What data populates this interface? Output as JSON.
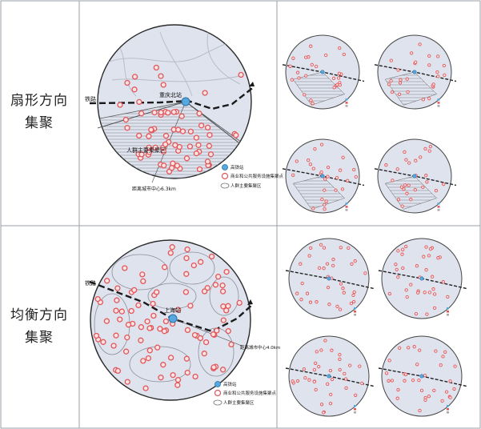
{
  "rows": [
    {
      "id": "sector",
      "label_line1": "扇形方向",
      "label_line2": "集聚",
      "railway_label": "铁路",
      "station_label": "重庆北站",
      "zone_label": "人群主要集聚区",
      "distance_label": "距离城市中心6.3km",
      "legend": [
        "高铁站",
        "商业和公共服务设施集聚点",
        "人群主要集聚区"
      ]
    },
    {
      "id": "balanced",
      "label_line1": "均衡方向",
      "label_line2": "集聚",
      "railway_label": "铁路",
      "station_label": "上海站",
      "distance_label": "距离城市中心4.0km",
      "legend": [
        "高铁站",
        "商业和公共服务设施集聚点",
        "人群主要集聚区"
      ]
    }
  ],
  "colors": {
    "circle_fill": "#dfe3ee",
    "poi_red": "#e2565a",
    "station_blue": "#58a8e0",
    "grid": "#9aa0aa"
  }
}
